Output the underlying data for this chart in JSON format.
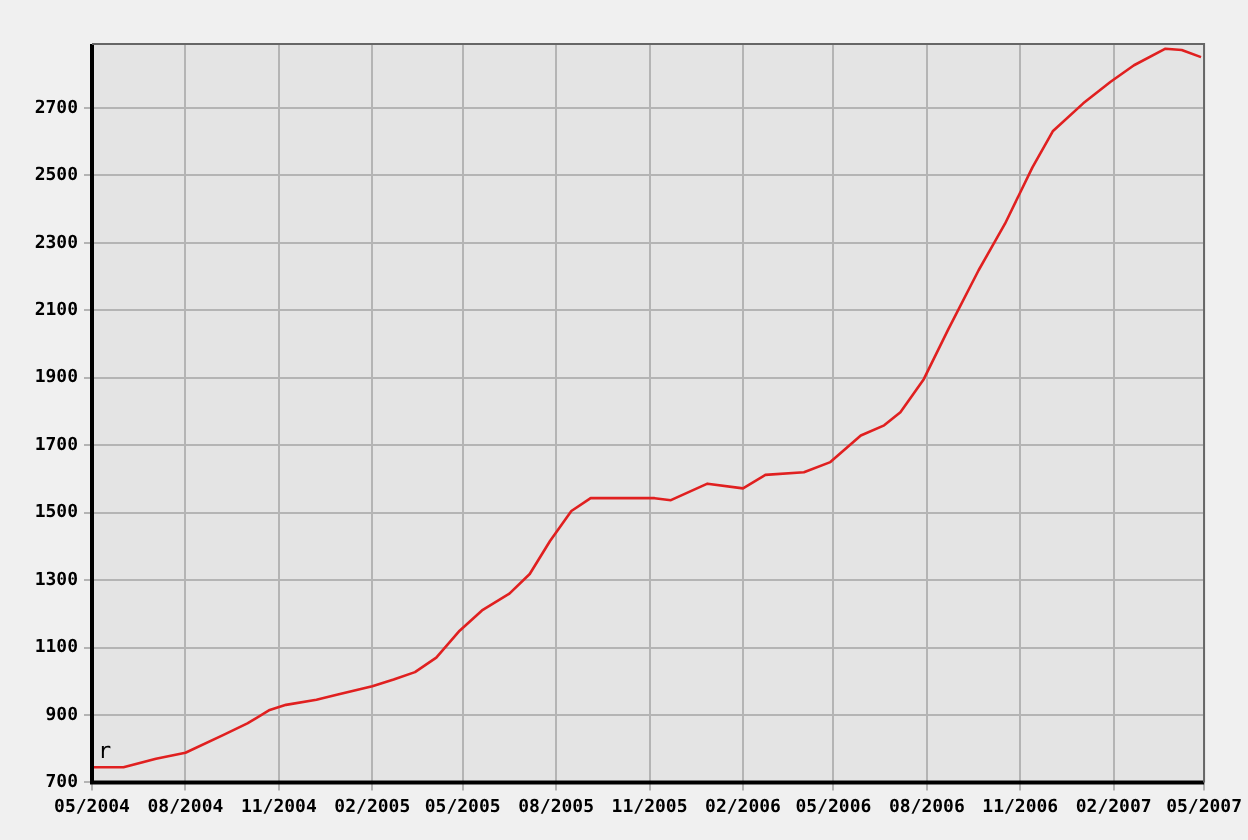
{
  "chart_data": {
    "type": "line",
    "x": [
      "2004-05-01",
      "2004-06-01",
      "2004-07-03",
      "2004-08-01",
      "2004-09-07",
      "2004-10-01",
      "2004-10-23",
      "2004-11-08",
      "2004-12-08",
      "2004-12-28",
      "2005-02-01",
      "2005-02-22",
      "2005-03-15",
      "2005-04-05",
      "2005-04-28",
      "2005-05-20",
      "2005-06-16",
      "2005-07-06",
      "2005-07-26",
      "2005-08-16",
      "2005-09-04",
      "2005-11-06",
      "2005-11-22",
      "2005-12-28",
      "2006-02-01",
      "2006-02-23",
      "2006-04-02",
      "2006-04-28",
      "2006-05-28",
      "2006-06-20",
      "2006-07-06",
      "2006-07-29",
      "2006-08-22",
      "2006-09-21",
      "2006-10-17",
      "2006-11-13",
      "2006-12-03",
      "2007-01-02",
      "2007-01-29",
      "2007-02-21",
      "2007-03-24",
      "2007-04-09",
      "2007-04-28"
    ],
    "series": [
      {
        "color": "#e02020",
        "values": [
          745,
          745,
          770,
          788,
          840,
          875,
          915,
          930,
          945,
          960,
          985,
          1005,
          1027,
          1070,
          1150,
          1210,
          1260,
          1318,
          1416,
          1505,
          1543,
          1543,
          1537,
          1586,
          1572,
          1612,
          1620,
          1650,
          1729,
          1759,
          1798,
          1896,
          2043,
          2219,
          2357,
          2524,
          2631,
          2714,
          2778,
          2827,
          2876,
          2872,
          2851
        ]
      }
    ],
    "xlim": [
      "2004-05-01",
      "2007-05-01"
    ],
    "xticks": [
      {
        "value": "2004-05-01",
        "label": "05/2004"
      },
      {
        "value": "2004-08-01",
        "label": "08/2004"
      },
      {
        "value": "2004-11-01",
        "label": "11/2004"
      },
      {
        "value": "2005-02-01",
        "label": "02/2005"
      },
      {
        "value": "2005-05-01",
        "label": "05/2005"
      },
      {
        "value": "2005-08-01",
        "label": "08/2005"
      },
      {
        "value": "2005-11-01",
        "label": "11/2005"
      },
      {
        "value": "2006-02-01",
        "label": "02/2006"
      },
      {
        "value": "2006-05-01",
        "label": "05/2006"
      },
      {
        "value": "2006-08-01",
        "label": "08/2006"
      },
      {
        "value": "2006-11-01",
        "label": "11/2006"
      },
      {
        "value": "2007-02-01",
        "label": "02/2007"
      },
      {
        "value": "2007-05-01",
        "label": "05/2007"
      }
    ],
    "ylim": [
      700,
      2890
    ],
    "yticks": [
      700,
      900,
      1100,
      1300,
      1500,
      1700,
      1900,
      2100,
      2300,
      2500,
      2700
    ],
    "grid": true,
    "marker": "none",
    "line_style": "solid",
    "annotations": [
      "r"
    ]
  }
}
